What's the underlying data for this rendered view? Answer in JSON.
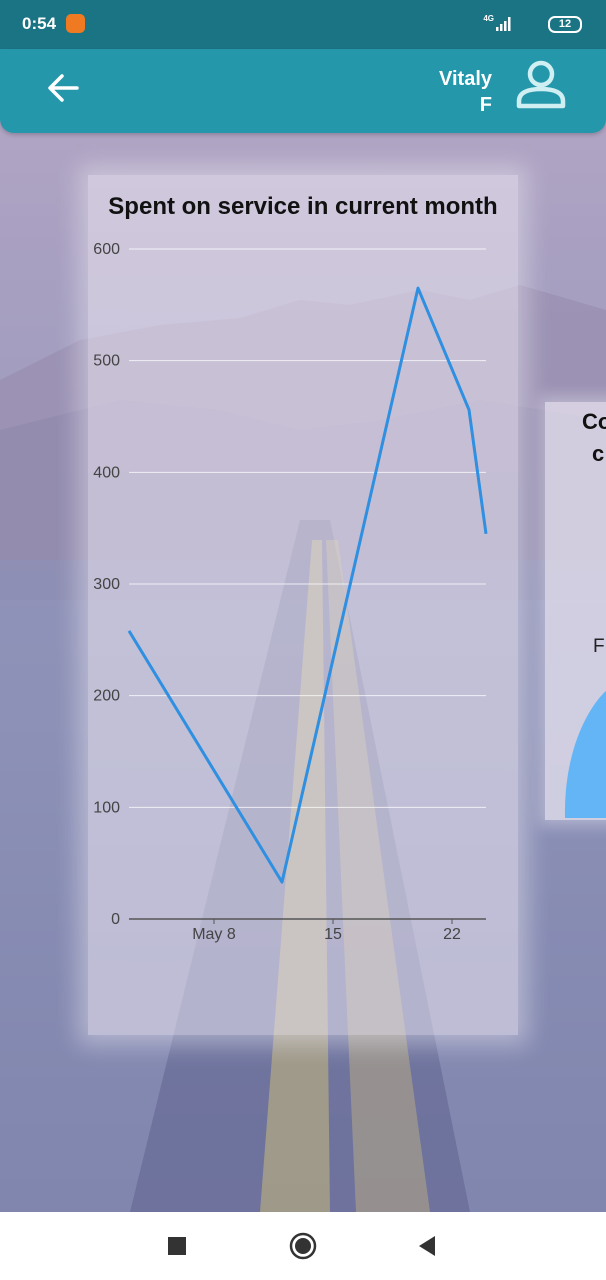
{
  "status_bar": {
    "time": "0:54",
    "network": "4G",
    "battery": "12"
  },
  "app_bar": {
    "user_name_line1": "Vitaly",
    "user_name_line2": "F"
  },
  "colors": {
    "status_bar": "#1b7484",
    "app_bar": "#2497ab",
    "line": "#2f8fe0",
    "pie": "#64b5f6"
  },
  "chart_data": {
    "type": "line",
    "title": "Spent on service in current month",
    "xlabel": "",
    "ylabel": "",
    "x_ticks": [
      "May 8",
      "15",
      "22"
    ],
    "y_ticks": [
      0,
      100,
      200,
      300,
      400,
      500,
      600
    ],
    "ylim": [
      0,
      600
    ],
    "xlim": [
      "2024-05-03",
      "2024-05-24"
    ],
    "grid": true,
    "series": [
      {
        "x": [
          "2024-05-03",
          "2024-05-12",
          "2024-05-20",
          "2024-05-23",
          "2024-05-24"
        ],
        "y": [
          258,
          33,
          565,
          456,
          345
        ]
      }
    ]
  },
  "side_card": {
    "title_line1": "Co",
    "title_line2": "c",
    "legend_text": "F"
  },
  "icons": [
    "back-arrow-icon",
    "user-icon",
    "nav-square-icon",
    "nav-circle-icon",
    "nav-triangle-icon"
  ]
}
